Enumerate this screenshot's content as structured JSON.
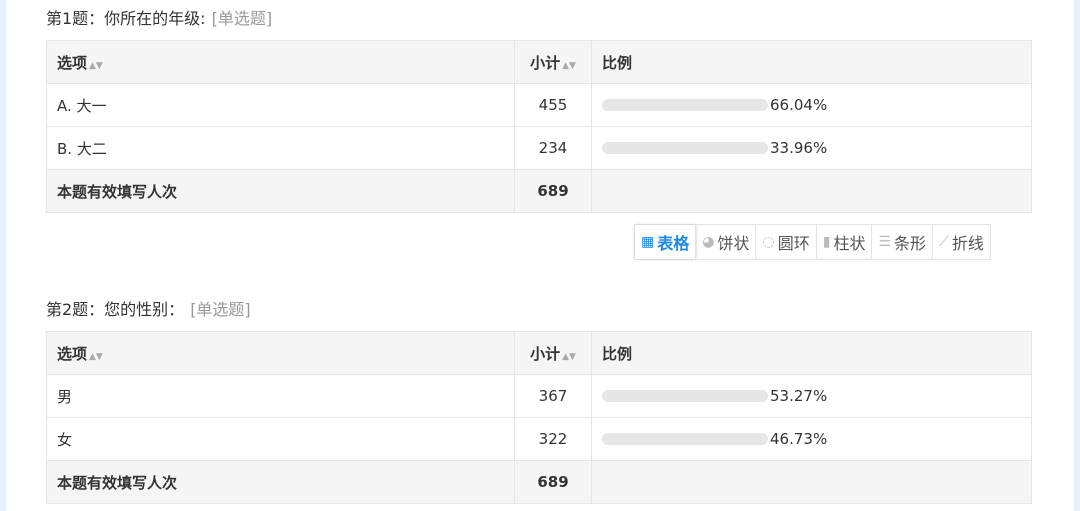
{
  "questions": [
    {
      "title": "第1题：你所在的年级:",
      "type": "[单选题]",
      "headers": [
        "选项",
        "小计",
        "比例"
      ],
      "rows": [
        {
          "option": "A. 大一",
          "count": "455",
          "percent": "66.04%"
        },
        {
          "option": "B. 大二",
          "count": "234",
          "percent": "33.96%"
        }
      ],
      "total_label": "本题有效填写人次",
      "total": "689"
    },
    {
      "title": "第2题：您的性别：",
      "type": "[单选题]",
      "headers": [
        "选项",
        "小计",
        "比例"
      ],
      "rows": [
        {
          "option": "男",
          "count": "367",
          "percent": "53.27%"
        },
        {
          "option": "女",
          "count": "322",
          "percent": "46.73%"
        }
      ],
      "total_label": "本题有效填写人次",
      "total": "689"
    }
  ],
  "view_tabs": [
    {
      "label": "表格",
      "icon": "table-icon",
      "active": true
    },
    {
      "label": "饼状",
      "icon": "pie-icon"
    },
    {
      "label": "圆环",
      "icon": "donut-icon"
    },
    {
      "label": "柱状",
      "icon": "column-chart-icon"
    },
    {
      "label": "条形",
      "icon": "bar-chart-icon"
    },
    {
      "label": "折线",
      "icon": "line-chart-icon"
    }
  ],
  "colors": {
    "accent": "#1e88e5",
    "bar_track": "#e6e6e6"
  }
}
